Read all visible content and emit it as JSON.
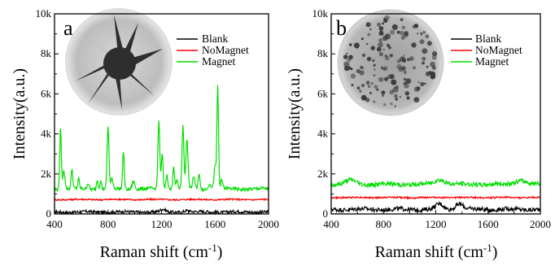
{
  "chart_data": [
    {
      "panel": "a",
      "type": "line",
      "xlabel": "Raman shift (cm",
      "xlabel_sup": "-1",
      "xlabel_tail": ")",
      "ylabel": "Intensity(a.u.)",
      "xlim": [
        400,
        2000
      ],
      "ylim": [
        0,
        10000
      ],
      "x_ticks": [
        400,
        800,
        1200,
        1600,
        2000
      ],
      "y_ticks": [
        "0",
        "2k",
        "4k",
        "6k",
        "8k",
        "10k"
      ],
      "legend": [
        "Blank",
        "NoMagnet",
        "Magnet"
      ],
      "series": [
        {
          "name": "Blank",
          "color": "#000000",
          "baseline": 100,
          "noise": 70,
          "peaks": [
            [
              1210,
              120,
              18
            ],
            [
              1390,
              80,
              20
            ]
          ]
        },
        {
          "name": "NoMagnet",
          "color": "#ff0000",
          "baseline": 720,
          "noise": 40,
          "peaks": []
        },
        {
          "name": "Magnet",
          "color": "#00dd00",
          "baseline": 1250,
          "noise": 90,
          "peaks": [
            [
              445,
              3000,
              6
            ],
            [
              470,
              900,
              8
            ],
            [
              530,
              1000,
              6
            ],
            [
              580,
              500,
              6
            ],
            [
              650,
              300,
              8
            ],
            [
              720,
              500,
              6
            ],
            [
              745,
              400,
              6
            ],
            [
              800,
              3100,
              7
            ],
            [
              830,
              500,
              8
            ],
            [
              915,
              1900,
              6
            ],
            [
              990,
              400,
              10
            ],
            [
              1180,
              3400,
              7
            ],
            [
              1205,
              1800,
              6
            ],
            [
              1240,
              700,
              8
            ],
            [
              1290,
              1200,
              6
            ],
            [
              1315,
              400,
              8
            ],
            [
              1360,
              3100,
              7
            ],
            [
              1390,
              2400,
              8
            ],
            [
              1440,
              600,
              8
            ],
            [
              1480,
              700,
              8
            ],
            [
              1560,
              300,
              10
            ],
            [
              1600,
              1100,
              8
            ],
            [
              1620,
              5100,
              6
            ],
            [
              1650,
              400,
              8
            ]
          ]
        }
      ],
      "inset": "gold-nanostar-tem-image"
    },
    {
      "panel": "b",
      "type": "line",
      "xlabel": "Raman shift (cm",
      "xlabel_sup": "-1",
      "xlabel_tail": ")",
      "ylabel": "Intensity(a.u.)",
      "xlim": [
        400,
        2000
      ],
      "ylim": [
        0,
        10000
      ],
      "x_ticks": [
        400,
        800,
        1200,
        1600,
        2000
      ],
      "y_ticks": [
        "0",
        "2k",
        "4k",
        "6k",
        "8k",
        "10k"
      ],
      "legend": [
        "Blank",
        "NoMagnet",
        "Magnet"
      ],
      "series": [
        {
          "name": "Blank",
          "color": "#000000",
          "baseline": 230,
          "noise": 110,
          "peaks": [
            [
              1230,
              250,
              30
            ],
            [
              1380,
              280,
              30
            ]
          ]
        },
        {
          "name": "NoMagnet",
          "color": "#ff0000",
          "baseline": 820,
          "noise": 40,
          "peaks": []
        },
        {
          "name": "Magnet",
          "color": "#00dd00",
          "baseline": 1480,
          "noise": 110,
          "peaks": [
            [
              550,
              200,
              40
            ],
            [
              1230,
              250,
              40
            ],
            [
              1850,
              200,
              40
            ]
          ]
        }
      ],
      "inset": "nanoparticle-cluster-tem-image"
    }
  ]
}
